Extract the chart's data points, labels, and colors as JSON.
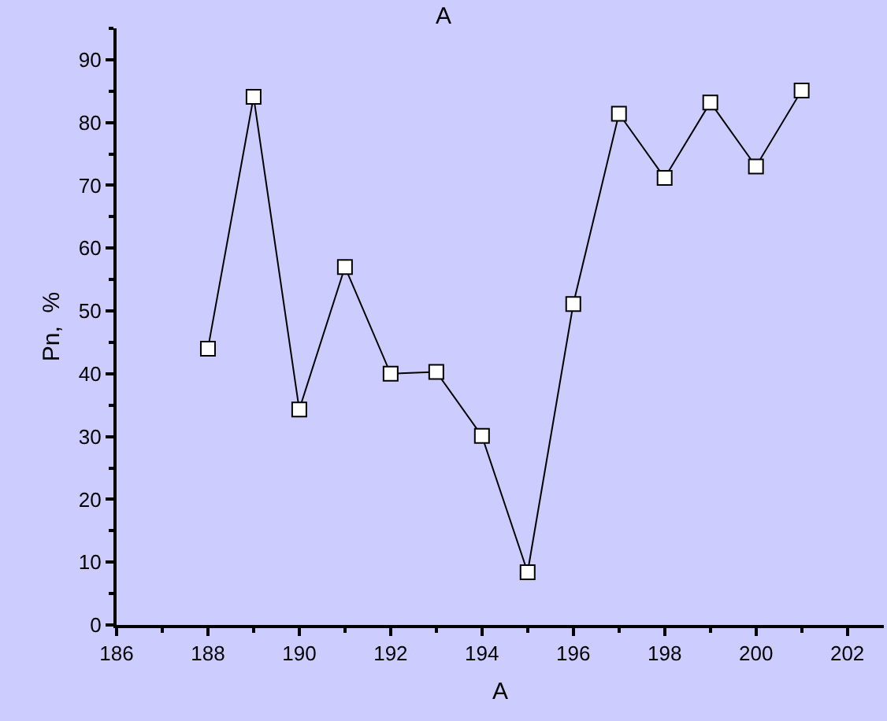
{
  "chart_data": {
    "type": "line",
    "title": "A",
    "xlabel": "A",
    "ylabel": "Pn,  %",
    "x": [
      188,
      189,
      190,
      191,
      192,
      193,
      194,
      195,
      196,
      197,
      198,
      199,
      200,
      201
    ],
    "series": [
      {
        "color": "#000000",
        "values": [
          44.0,
          84.1,
          34.3,
          57.0,
          40.0,
          40.3,
          30.1,
          8.4,
          51.1,
          81.4,
          71.2,
          83.2,
          73.0,
          85.1
        ]
      }
    ],
    "xlim": [
      186,
      202.8
    ],
    "xticks": [
      186,
      188,
      190,
      192,
      194,
      196,
      198,
      200,
      202
    ],
    "ylim": [
      0,
      95
    ],
    "yticks": [
      0,
      10,
      20,
      30,
      40,
      50,
      60,
      70,
      80,
      90
    ],
    "grid": false,
    "marker": "square",
    "line_style": "solid"
  }
}
